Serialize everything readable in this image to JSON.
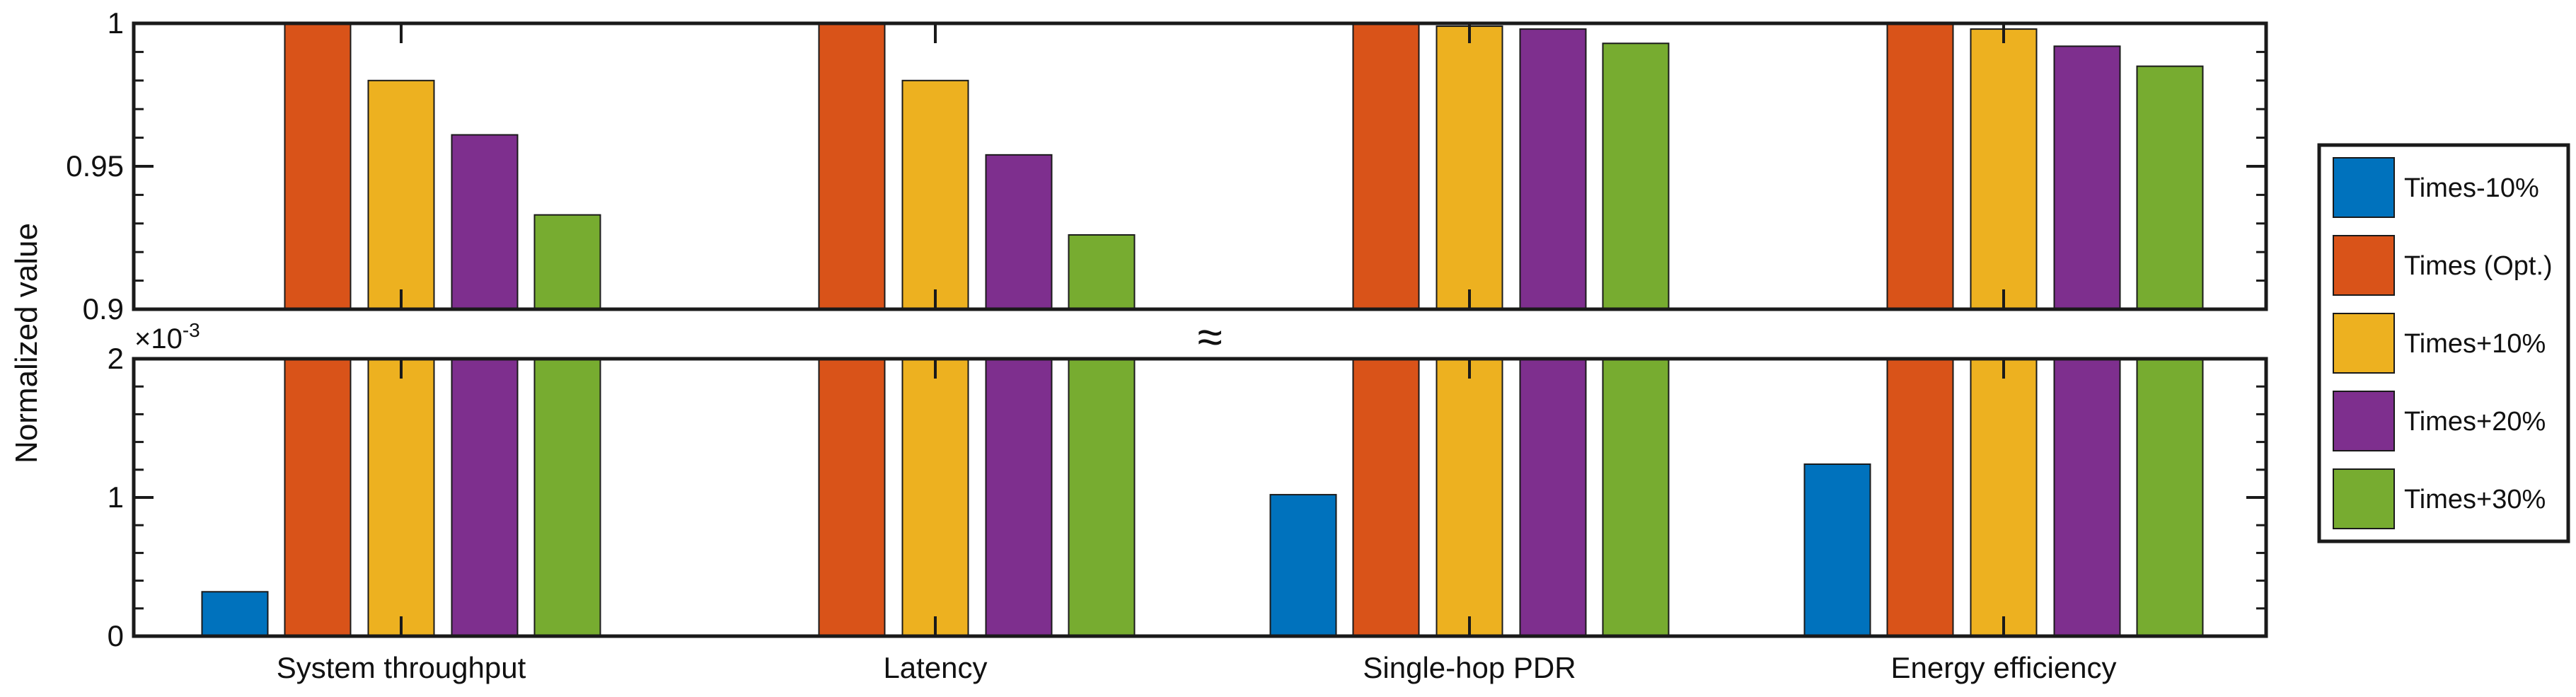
{
  "chart_data": {
    "type": "bar",
    "ylabel": "Normalized value",
    "categories": [
      "System throughput",
      "Latency",
      "Single-hop PDR",
      "Energy efficiency"
    ],
    "series": [
      {
        "name": "Times-10%",
        "color": "#0072BD",
        "values": [
          0.00032,
          0,
          0.00102,
          0.00124
        ]
      },
      {
        "name": "Times (Opt.)",
        "color": "#D95319",
        "values": [
          1.0,
          1.0,
          1.0,
          1.0
        ]
      },
      {
        "name": "Times+10%",
        "color": "#EDB120",
        "values": [
          0.98,
          0.98,
          0.999,
          0.998
        ]
      },
      {
        "name": "Times+20%",
        "color": "#7E2F8E",
        "values": [
          0.961,
          0.954,
          0.998,
          0.992
        ]
      },
      {
        "name": "Times+30%",
        "color": "#77AC30",
        "values": [
          0.933,
          0.926,
          0.993,
          0.985
        ]
      }
    ],
    "upper_panel": {
      "ylim": [
        0.9,
        1.0
      ],
      "tick_labels": [
        "0.9",
        "0.95",
        "1"
      ],
      "tick_values": [
        0.9,
        0.95,
        1.0
      ]
    },
    "lower_panel": {
      "ylim": [
        0,
        0.002
      ],
      "tick_labels": [
        "0",
        "1",
        "2"
      ],
      "tick_values": [
        0,
        0.001,
        0.002
      ],
      "scale_label": "×10",
      "scale_exponent": "-3"
    },
    "axis_break_symbol": "≈",
    "legend_position": "right"
  }
}
